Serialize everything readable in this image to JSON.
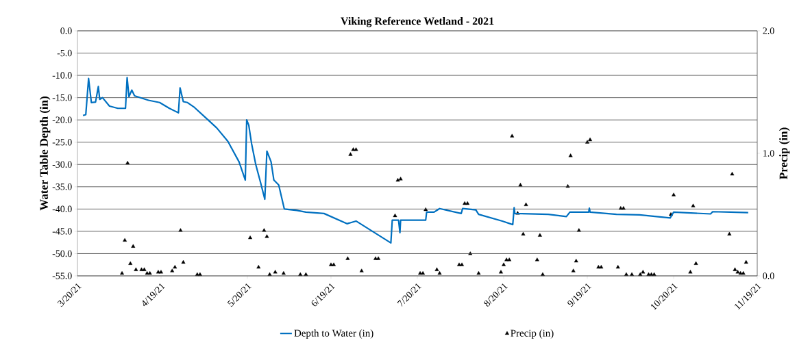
{
  "chart_data": {
    "type": "line",
    "title": "Viking Reference Wetland - 2021",
    "ylabel": "Water Table Depth (in)",
    "y2label": "Precip (in)",
    "xlim": [
      "2021-03-20",
      "2021-11-19"
    ],
    "xticks": [
      {
        "value": "2021-03-20",
        "label": "3/20/21"
      },
      {
        "value": "2021-04-19",
        "label": "4/19/21"
      },
      {
        "value": "2021-05-20",
        "label": "5/20/21"
      },
      {
        "value": "2021-06-19",
        "label": "6/19/21"
      },
      {
        "value": "2021-07-20",
        "label": "7/20/21"
      },
      {
        "value": "2021-08-20",
        "label": "8/20/21"
      },
      {
        "value": "2021-09-19",
        "label": "9/19/21"
      },
      {
        "value": "2021-10-20",
        "label": "10/20/21"
      },
      {
        "value": "2021-11-19",
        "label": "11/19/21"
      }
    ],
    "ylim": [
      -55,
      0
    ],
    "yticks": [
      {
        "value": 0,
        "label": "0.0"
      },
      {
        "value": -5,
        "label": "-5.0"
      },
      {
        "value": -10,
        "label": "-10.0"
      },
      {
        "value": -15,
        "label": "-15.0"
      },
      {
        "value": -20,
        "label": "-20.0"
      },
      {
        "value": -25,
        "label": "-25.0"
      },
      {
        "value": -30,
        "label": "-30.0"
      },
      {
        "value": -35,
        "label": "-35.0"
      },
      {
        "value": -40,
        "label": "-40.0"
      },
      {
        "value": -45,
        "label": "-45.0"
      },
      {
        "value": -50,
        "label": "-50.0"
      },
      {
        "value": -55,
        "label": "-55.0"
      }
    ],
    "y2lim": [
      0,
      2
    ],
    "y2ticks": [
      {
        "value": 0,
        "label": "0.0"
      },
      {
        "value": 1,
        "label": "1.0"
      },
      {
        "value": 2,
        "label": "2.0"
      }
    ],
    "grid": "y",
    "legend": "bottom",
    "series": [
      {
        "name": "Depth to Water (in)",
        "color": "#0070c0",
        "marker": "none",
        "line_style": "solid",
        "x": [
          "2021-03-22T00:00",
          "2021-03-23T00:00",
          "2021-03-24T00:00",
          "2021-03-25T00:00",
          "2021-03-26T12:00",
          "2021-03-27T12:00",
          "2021-03-28T00:00",
          "2021-03-29T00:00",
          "2021-03-31T12:00",
          "2021-04-03T12:00",
          "2021-04-06T06:00",
          "2021-04-06T20:00",
          "2021-04-07T12:00",
          "2021-04-08T12:00",
          "2021-04-09T12:00",
          "2021-04-14T12:00",
          "2021-04-18T12:00",
          "2021-04-22T00:00",
          "2021-04-25T06:00",
          "2021-04-25T20:00",
          "2021-04-27T00:00",
          "2021-04-28T12:00",
          "2021-05-01T00:00",
          "2021-05-05T00:00",
          "2021-05-09T00:00",
          "2021-05-13T00:00",
          "2021-05-17T00:00",
          "2021-05-19T06:00",
          "2021-05-19T18:00",
          "2021-05-20T12:00",
          "2021-05-21T12:00",
          "2021-05-23T00:00",
          "2021-05-24T18:00",
          "2021-05-26T06:00",
          "2021-05-27T00:00",
          "2021-05-28T12:00",
          "2021-05-29T12:00",
          "2021-05-31T06:00",
          "2021-06-02T06:00",
          "2021-06-06T18:00",
          "2021-06-10T00:00",
          "2021-06-16T12:00",
          "2021-06-24T18:00",
          "2021-06-28T00:00",
          "2021-07-10T12:00",
          "2021-07-11T00:00",
          "2021-07-13T06:00",
          "2021-07-13T18:00",
          "2021-07-14T00:00",
          "2021-07-23T00:00",
          "2021-07-23T08:00",
          "2021-07-26T00:00",
          "2021-07-28T00:00",
          "2021-08-04T18:00",
          "2021-08-05T06:00",
          "2021-08-10T00:00",
          "2021-08-11T00:00",
          "2021-08-19T12:00",
          "2021-08-23T06:00",
          "2021-08-23T18:00",
          "2021-08-24T00:00",
          "2021-09-05T00:00",
          "2021-09-11T12:00",
          "2021-09-12T18:00",
          "2021-09-19T12:00",
          "2021-09-19T18:00",
          "2021-09-20T00:00",
          "2021-09-29T12:00",
          "2021-10-07T18:00",
          "2021-10-18T18:00",
          "2021-10-20T00:00",
          "2021-11-02T06:00",
          "2021-11-03T00:00",
          "2021-11-09T12:00",
          "2021-11-15T18:00"
        ],
        "values": [
          -19.0,
          -18.8,
          -10.7,
          -16.1,
          -16.0,
          -12.5,
          -15.4,
          -15.0,
          -16.9,
          -17.4,
          -17.4,
          -10.5,
          -14.8,
          -13.3,
          -14.6,
          -15.6,
          -16.1,
          -17.4,
          -18.4,
          -12.8,
          -15.9,
          -16.1,
          -17.2,
          -19.5,
          -21.8,
          -24.8,
          -29.4,
          -33.5,
          -20.0,
          -21.2,
          -25.3,
          -30.0,
          -34.1,
          -37.8,
          -27.0,
          -29.4,
          -33.5,
          -34.6,
          -40.0,
          -40.3,
          -40.7,
          -41.0,
          -43.3,
          -42.7,
          -47.6,
          -42.5,
          -42.5,
          -45.3,
          -42.5,
          -42.5,
          -40.7,
          -40.7,
          -39.9,
          -41.0,
          -39.9,
          -40.2,
          -41.2,
          -42.7,
          -43.5,
          -39.7,
          -41.0,
          -41.2,
          -41.7,
          -40.7,
          -40.7,
          -39.8,
          -40.7,
          -41.2,
          -41.3,
          -42.0,
          -40.7,
          -41.1,
          -40.6,
          -40.7,
          -40.8
        ]
      },
      {
        "name": "Precip (in)",
        "type": "scatter",
        "color": "#000000",
        "marker": "triangle",
        "axis": "y2",
        "x": [
          "2021-04-05",
          "2021-04-06",
          "2021-04-07",
          "2021-04-08",
          "2021-04-09",
          "2021-04-10",
          "2021-04-12",
          "2021-04-13",
          "2021-04-14",
          "2021-04-15",
          "2021-04-18",
          "2021-04-19",
          "2021-04-23",
          "2021-04-24",
          "2021-04-26",
          "2021-04-27",
          "2021-05-02",
          "2021-05-03",
          "2021-05-21",
          "2021-05-24",
          "2021-05-26",
          "2021-05-27",
          "2021-05-28",
          "2021-05-30",
          "2021-06-02",
          "2021-06-08",
          "2021-06-10",
          "2021-06-19",
          "2021-06-20",
          "2021-06-25",
          "2021-06-26",
          "2021-06-27",
          "2021-06-28",
          "2021-06-30",
          "2021-07-05",
          "2021-07-06",
          "2021-07-12",
          "2021-07-13",
          "2021-07-14",
          "2021-07-21",
          "2021-07-22",
          "2021-07-23",
          "2021-07-27",
          "2021-07-28",
          "2021-08-04",
          "2021-08-05",
          "2021-08-06",
          "2021-08-07",
          "2021-08-08",
          "2021-08-11",
          "2021-08-19",
          "2021-08-20",
          "2021-08-21",
          "2021-08-22",
          "2021-08-23",
          "2021-08-25",
          "2021-08-26",
          "2021-08-27",
          "2021-08-28",
          "2021-09-01",
          "2021-09-02",
          "2021-09-03",
          "2021-09-12",
          "2021-09-13",
          "2021-09-14",
          "2021-09-15",
          "2021-09-16",
          "2021-09-19",
          "2021-09-20",
          "2021-09-23",
          "2021-09-24",
          "2021-09-30",
          "2021-10-01",
          "2021-10-02",
          "2021-10-03",
          "2021-10-05",
          "2021-10-08",
          "2021-10-09",
          "2021-10-11",
          "2021-10-12",
          "2021-10-13",
          "2021-10-19",
          "2021-10-20",
          "2021-10-26",
          "2021-10-27",
          "2021-10-28",
          "2021-11-09",
          "2021-11-10",
          "2021-11-11",
          "2021-11-12",
          "2021-11-13",
          "2021-11-14",
          "2021-11-15"
        ],
        "values": [
          0.02,
          0.29,
          0.92,
          0.1,
          0.24,
          0.05,
          0.05,
          0.05,
          0.02,
          0.02,
          0.03,
          0.03,
          0.04,
          0.07,
          0.37,
          0.11,
          0.01,
          0.01,
          0.31,
          0.07,
          0.37,
          0.32,
          0.01,
          0.03,
          0.02,
          0.01,
          0.01,
          0.09,
          0.09,
          0.14,
          0.99,
          1.03,
          1.03,
          0.04,
          0.14,
          0.14,
          0.49,
          0.78,
          0.79,
          0.02,
          0.02,
          0.54,
          0.05,
          0.02,
          0.09,
          0.09,
          0.59,
          0.59,
          0.18,
          0.02,
          0.03,
          0.09,
          0.13,
          0.13,
          1.14,
          0.51,
          0.74,
          0.34,
          0.58,
          0.13,
          0.33,
          0.01,
          0.73,
          0.98,
          0.04,
          0.12,
          0.37,
          1.09,
          1.11,
          0.07,
          0.07,
          0.07,
          0.55,
          0.55,
          0.01,
          0.01,
          0.01,
          0.03,
          0.01,
          0.01,
          0.01,
          0.5,
          0.66,
          0.03,
          0.57,
          0.1,
          0.34,
          0.83,
          0.05,
          0.03,
          0.02,
          0.02,
          0.11
        ]
      }
    ]
  }
}
